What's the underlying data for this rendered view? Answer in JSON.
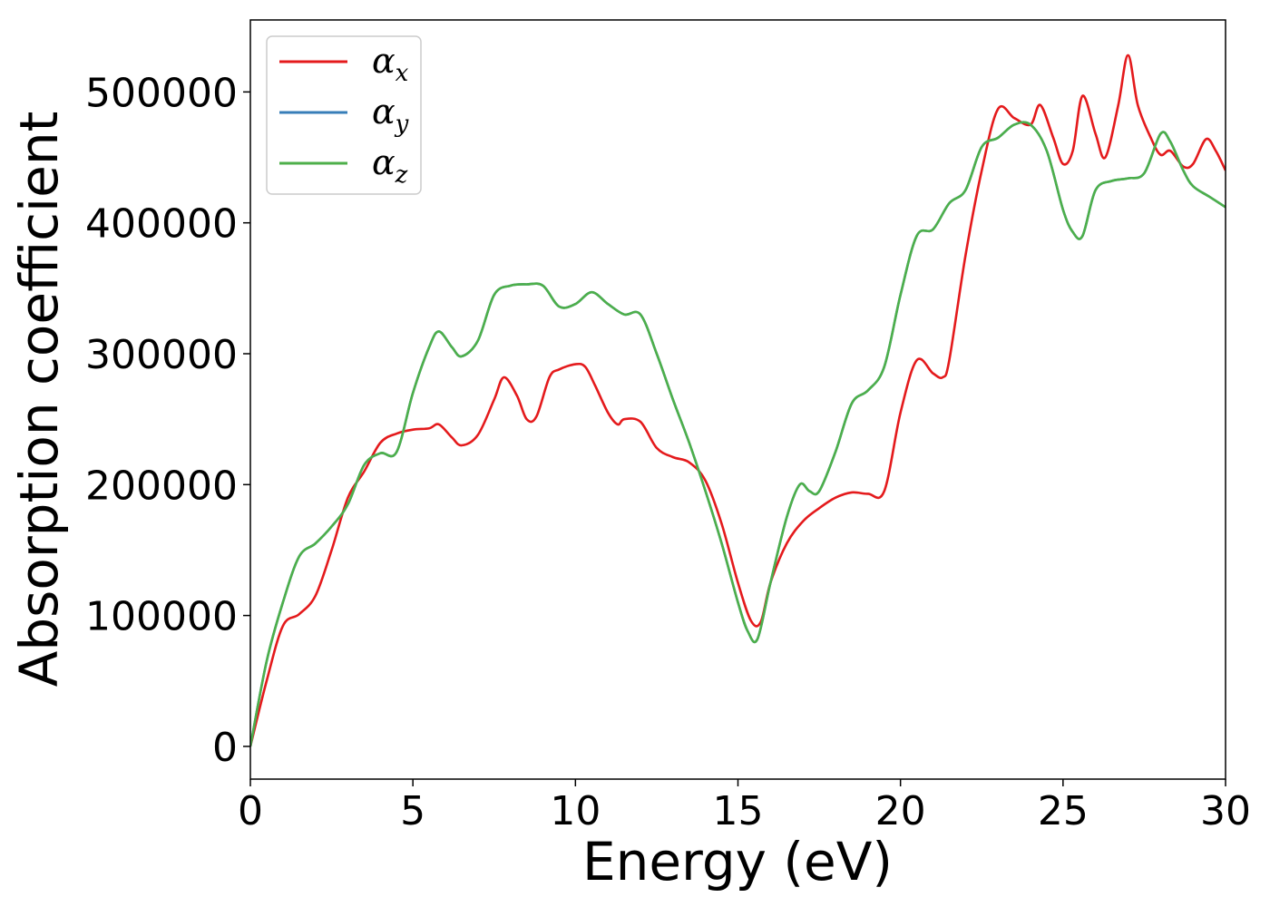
{
  "chart_data": {
    "type": "line",
    "xlabel": "Energy (eV)",
    "ylabel": "Absorption coefficient",
    "xlim": [
      0,
      30
    ],
    "ylim": [
      -25000,
      555000
    ],
    "xticks": [
      "0",
      "5",
      "10",
      "15",
      "20",
      "25",
      "30"
    ],
    "yticks": [
      "0",
      "100000",
      "200000",
      "300000",
      "400000",
      "500000"
    ],
    "legend": {
      "placement": "top-left"
    },
    "series": [
      {
        "name": "αx",
        "greek": "α",
        "sub": "x",
        "color": "#e41a1c",
        "x": [
          0,
          0.5,
          1,
          1.5,
          2,
          2.5,
          3,
          3.5,
          4,
          4.5,
          5,
          5.5,
          5.8,
          6.2,
          6.5,
          7,
          7.5,
          7.8,
          8.2,
          8.5,
          8.8,
          9.2,
          9.5,
          10,
          10.3,
          10.6,
          11,
          11.3,
          11.5,
          12,
          12.5,
          13,
          13.5,
          14,
          14.5,
          15,
          15.4,
          15.7,
          16,
          16.5,
          17,
          17.5,
          18,
          18.5,
          19,
          19.5,
          20,
          20.5,
          21,
          21.3,
          21.5,
          22,
          22.5,
          23,
          23.5,
          24,
          24.3,
          24.7,
          25,
          25.3,
          25.6,
          26,
          26.3,
          26.7,
          27,
          27.3,
          27.7,
          28,
          28.3,
          28.7,
          29,
          29.4,
          29.7,
          30
        ],
        "y": [
          0,
          50000,
          92000,
          101000,
          115000,
          150000,
          190000,
          210000,
          232000,
          239000,
          242000,
          243000,
          246000,
          236000,
          230000,
          238000,
          265000,
          282000,
          268000,
          250000,
          252000,
          282000,
          288000,
          292000,
          290000,
          276000,
          255000,
          246000,
          250000,
          248000,
          228000,
          221000,
          217000,
          203000,
          170000,
          125000,
          96000,
          95000,
          125000,
          155000,
          172000,
          182000,
          190000,
          194000,
          193000,
          195000,
          255000,
          295000,
          285000,
          282000,
          295000,
          375000,
          440000,
          487000,
          480000,
          475000,
          490000,
          465000,
          445000,
          455000,
          497000,
          468000,
          450000,
          490000,
          528000,
          490000,
          465000,
          452000,
          455000,
          443000,
          445000,
          464000,
          455000,
          440000
        ]
      },
      {
        "name": "αy",
        "greek": "α",
        "sub": "y",
        "color": "#377eb8",
        "x": [
          0,
          0.5,
          1,
          1.5,
          2,
          2.5,
          3,
          3.5,
          4,
          4.5,
          5,
          5.5,
          5.8,
          6.2,
          6.5,
          7,
          7.5,
          8,
          8.5,
          9,
          9.5,
          10,
          10.5,
          11,
          11.5,
          12,
          12.5,
          13,
          13.5,
          14,
          14.5,
          15,
          15.3,
          15.6,
          16,
          16.5,
          16.9,
          17.2,
          17.5,
          18,
          18.5,
          19,
          19.5,
          20,
          20.5,
          21,
          21.5,
          22,
          22.5,
          23,
          23.5,
          24,
          24.5,
          25,
          25.3,
          25.6,
          26,
          26.5,
          27,
          27.5,
          28,
          28.3,
          28.7,
          29,
          29.5,
          30
        ],
        "y": [
          0,
          65000,
          110000,
          145000,
          155000,
          168000,
          185000,
          215000,
          224000,
          225000,
          270000,
          305000,
          317000,
          305000,
          298000,
          310000,
          345000,
          352000,
          353000,
          352000,
          336000,
          338000,
          347000,
          338000,
          330000,
          330000,
          300000,
          265000,
          232000,
          195000,
          155000,
          110000,
          88000,
          82000,
          125000,
          175000,
          200000,
          195000,
          195000,
          225000,
          262000,
          272000,
          290000,
          345000,
          390000,
          395000,
          415000,
          425000,
          458000,
          465000,
          475000,
          475000,
          455000,
          410000,
          393000,
          390000,
          425000,
          432000,
          434000,
          438000,
          468000,
          462000,
          440000,
          428000,
          420000,
          412000
        ]
      },
      {
        "name": "αz",
        "greek": "α",
        "sub": "z",
        "color": "#4daf4a",
        "x": [
          0,
          0.5,
          1,
          1.5,
          2,
          2.5,
          3,
          3.5,
          4,
          4.5,
          5,
          5.5,
          5.8,
          6.2,
          6.5,
          7,
          7.5,
          8,
          8.5,
          9,
          9.5,
          10,
          10.5,
          11,
          11.5,
          12,
          12.5,
          13,
          13.5,
          14,
          14.5,
          15,
          15.3,
          15.6,
          16,
          16.5,
          16.9,
          17.2,
          17.5,
          18,
          18.5,
          19,
          19.5,
          20,
          20.5,
          21,
          21.5,
          22,
          22.5,
          23,
          23.5,
          24,
          24.5,
          25,
          25.3,
          25.6,
          26,
          26.5,
          27,
          27.5,
          28,
          28.3,
          28.7,
          29,
          29.5,
          30
        ],
        "y": [
          0,
          65000,
          110000,
          145000,
          155000,
          168000,
          185000,
          215000,
          224000,
          225000,
          270000,
          305000,
          317000,
          305000,
          298000,
          310000,
          345000,
          352000,
          353000,
          352000,
          336000,
          338000,
          347000,
          338000,
          330000,
          330000,
          300000,
          265000,
          232000,
          195000,
          155000,
          110000,
          88000,
          82000,
          125000,
          175000,
          200000,
          195000,
          195000,
          225000,
          262000,
          272000,
          290000,
          345000,
          390000,
          395000,
          415000,
          425000,
          458000,
          465000,
          475000,
          475000,
          455000,
          410000,
          393000,
          390000,
          425000,
          432000,
          434000,
          438000,
          468000,
          462000,
          440000,
          428000,
          420000,
          412000
        ]
      }
    ]
  }
}
